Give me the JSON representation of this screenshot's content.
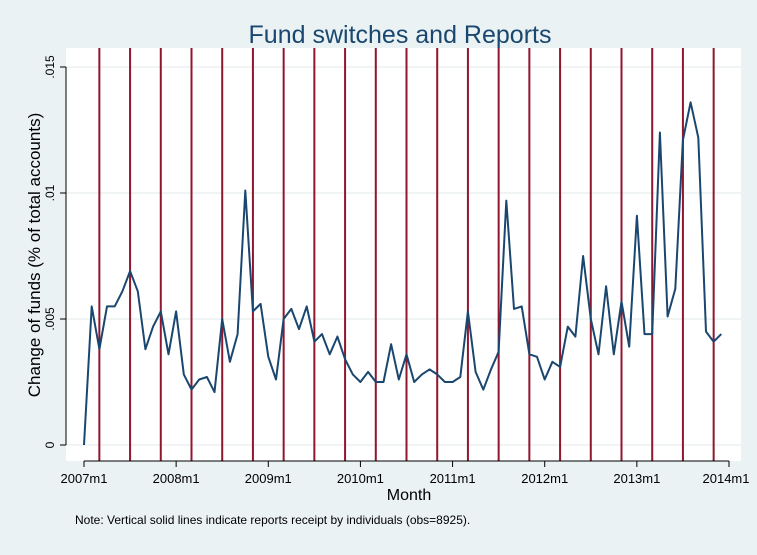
{
  "chart_data": {
    "type": "line",
    "title": "Fund switches and Reports",
    "xlabel": "Month",
    "ylabel": "Change of funds (% of total accounts)",
    "note": "Note: Vertical solid lines indicate reports receipt by individuals (obs=8925).",
    "x_ticks": [
      "2007m1",
      "2008m1",
      "2009m1",
      "2010m1",
      "2011m1",
      "2012m1",
      "2013m1",
      "2014m1"
    ],
    "y_ticks": [
      "0",
      ".005",
      ".01",
      ".015"
    ],
    "y_tick_values": [
      0,
      0.005,
      0.01,
      0.015
    ],
    "xlim": [
      "2007m1",
      "2014m1"
    ],
    "ylim": [
      0,
      0.0155
    ],
    "grid": true,
    "colors": {
      "line": "#1a476f",
      "report_lines": "#90162d",
      "plot_bg": "#ffffff",
      "outer_bg": "#eaf2f3",
      "grid": "#e6eeee"
    },
    "report_months": [
      "2007m3",
      "2007m7",
      "2007m11",
      "2008m3",
      "2008m7",
      "2008m11",
      "2009m3",
      "2009m7",
      "2009m11",
      "2010m3",
      "2010m7",
      "2010m11",
      "2011m3",
      "2011m7",
      "2011m11",
      "2012m3",
      "2012m7",
      "2012m11",
      "2013m3",
      "2013m7",
      "2013m11"
    ],
    "series": [
      {
        "x": [
          "2007m1",
          "2007m2",
          "2007m3",
          "2007m4",
          "2007m5",
          "2007m6",
          "2007m7",
          "2007m8",
          "2007m9",
          "2007m10",
          "2007m11",
          "2007m12",
          "2008m1",
          "2008m2",
          "2008m3",
          "2008m4",
          "2008m5",
          "2008m6",
          "2008m7",
          "2008m8",
          "2008m9",
          "2008m10",
          "2008m11",
          "2008m12",
          "2009m1",
          "2009m2",
          "2009m3",
          "2009m4",
          "2009m5",
          "2009m6",
          "2009m7",
          "2009m8",
          "2009m9",
          "2009m10",
          "2009m11",
          "2009m12",
          "2010m1",
          "2010m2",
          "2010m3",
          "2010m4",
          "2010m5",
          "2010m6",
          "2010m7",
          "2010m8",
          "2010m9",
          "2010m10",
          "2010m11",
          "2010m12",
          "2011m1",
          "2011m2",
          "2011m3",
          "2011m4",
          "2011m5",
          "2011m6",
          "2011m7",
          "2011m8",
          "2011m9",
          "2011m10",
          "2011m11",
          "2011m12",
          "2012m1",
          "2012m2",
          "2012m3",
          "2012m4",
          "2012m5",
          "2012m6",
          "2012m7",
          "2012m8",
          "2012m9",
          "2012m10",
          "2012m11",
          "2012m12",
          "2013m1",
          "2013m2",
          "2013m3",
          "2013m4",
          "2013m5",
          "2013m6",
          "2013m7",
          "2013m8",
          "2013m9",
          "2013m10",
          "2013m11",
          "2013m12"
        ],
        "values": [
          0.0,
          0.0055,
          0.0038,
          0.0055,
          0.0055,
          0.0061,
          0.0069,
          0.0061,
          0.0038,
          0.0047,
          0.0053,
          0.0036,
          0.0053,
          0.0028,
          0.0022,
          0.0026,
          0.0027,
          0.0021,
          0.005,
          0.0033,
          0.0044,
          0.0101,
          0.0053,
          0.0056,
          0.0035,
          0.0026,
          0.005,
          0.0054,
          0.0046,
          0.0055,
          0.0041,
          0.0044,
          0.0036,
          0.0043,
          0.0034,
          0.0028,
          0.0025,
          0.0029,
          0.0025,
          0.0025,
          0.004,
          0.0026,
          0.0036,
          0.0025,
          0.0028,
          0.003,
          0.0028,
          0.0025,
          0.0025,
          0.0027,
          0.0053,
          0.0029,
          0.0022,
          0.003,
          0.0037,
          0.0097,
          0.0054,
          0.0055,
          0.0036,
          0.0035,
          0.0026,
          0.0033,
          0.0031,
          0.0047,
          0.0043,
          0.0075,
          0.005,
          0.0036,
          0.0063,
          0.0036,
          0.0057,
          0.0039,
          0.0091,
          0.0044,
          0.0044,
          0.0124,
          0.0051,
          0.0062,
          0.0121,
          0.0136,
          0.0122,
          0.0045,
          0.0041,
          0.0044
        ]
      }
    ]
  }
}
